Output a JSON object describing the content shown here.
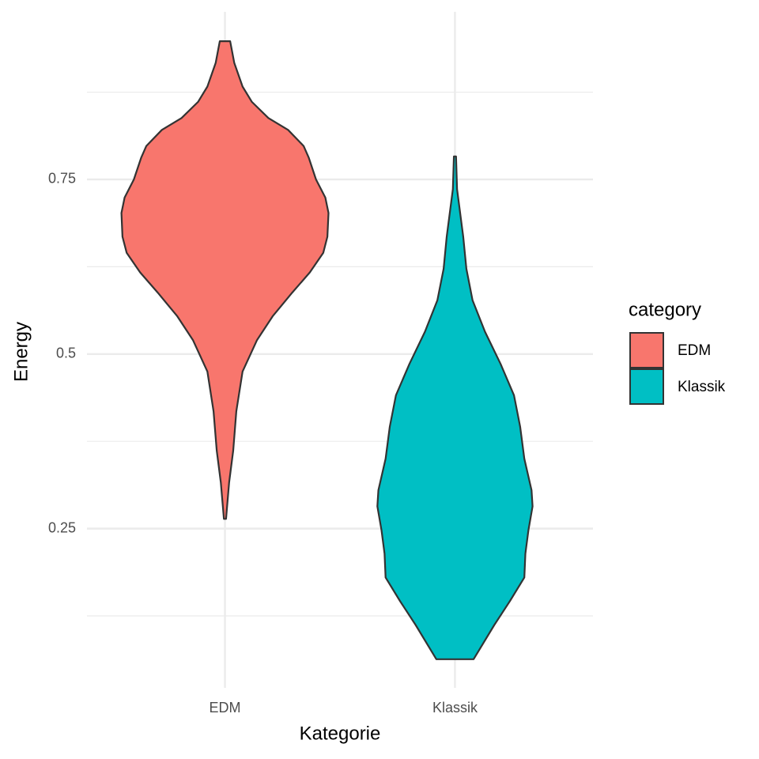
{
  "chart_data": {
    "type": "violin",
    "x_label": "Kategorie",
    "y_label": "Energy",
    "legend_title": "category",
    "legend_position": "right",
    "categories": [
      "EDM",
      "Klassik"
    ],
    "ylim": [
      0.022,
      0.99
    ],
    "yticks": [
      0.25,
      0.5,
      0.75
    ],
    "minor_yticks": [
      0.125,
      0.375,
      0.625,
      0.875
    ],
    "grid": true,
    "series": [
      {
        "name": "EDM",
        "color": "#F8766D",
        "y": [
          0.948,
          0.917,
          0.883,
          0.861,
          0.838,
          0.821,
          0.798,
          0.781,
          0.75,
          0.724,
          0.702,
          0.668,
          0.645,
          0.617,
          0.588,
          0.554,
          0.52,
          0.475,
          0.418,
          0.362,
          0.316,
          0.264
        ],
        "density": [
          0.05,
          0.09,
          0.17,
          0.26,
          0.42,
          0.61,
          0.76,
          0.81,
          0.88,
          0.97,
          1.0,
          0.99,
          0.95,
          0.82,
          0.65,
          0.46,
          0.31,
          0.17,
          0.11,
          0.08,
          0.04,
          0.01
        ]
      },
      {
        "name": "Klassik",
        "color": "#00BFC4",
        "y": [
          0.783,
          0.736,
          0.668,
          0.622,
          0.577,
          0.532,
          0.486,
          0.441,
          0.396,
          0.35,
          0.305,
          0.282,
          0.248,
          0.214,
          0.18,
          0.146,
          0.112,
          0.063
        ],
        "density": [
          0.01,
          0.02,
          0.08,
          0.11,
          0.17,
          0.29,
          0.44,
          0.57,
          0.63,
          0.67,
          0.74,
          0.75,
          0.71,
          0.68,
          0.67,
          0.53,
          0.38,
          0.18
        ]
      }
    ]
  }
}
